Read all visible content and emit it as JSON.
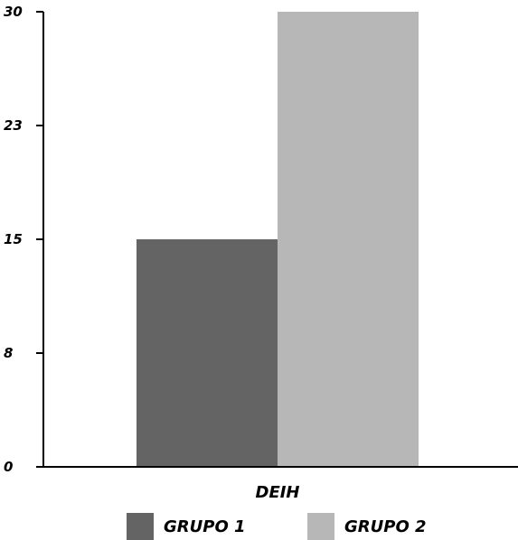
{
  "chart_data": {
    "type": "bar",
    "categories": [
      "DEIH"
    ],
    "series": [
      {
        "name": "GRUPO 1",
        "values": [
          15
        ],
        "color": "#646464"
      },
      {
        "name": "GRUPO 2",
        "values": [
          30
        ],
        "color": "#b7b7b7"
      }
    ],
    "yticks": [
      "0",
      "8",
      "15",
      "23",
      "30"
    ],
    "ytick_values": [
      0,
      7.5,
      15,
      22.5,
      30
    ],
    "ylim": [
      0,
      30
    ],
    "legend_position": "bottom",
    "grid": false,
    "title": "",
    "xlabel": "",
    "ylabel": ""
  }
}
